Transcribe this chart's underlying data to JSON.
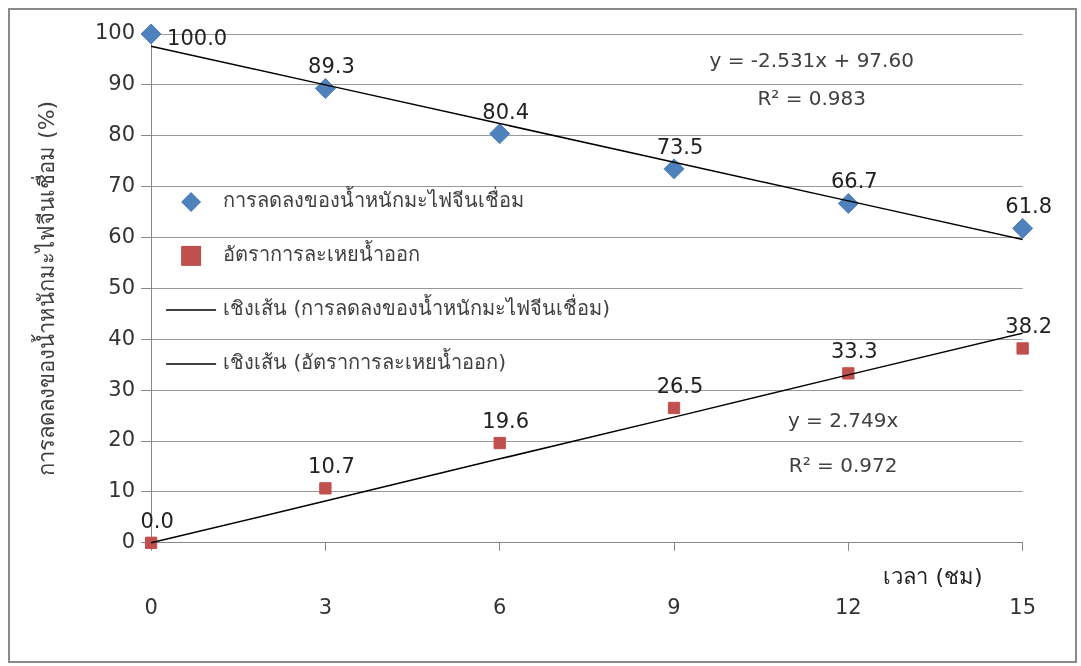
{
  "chart_data": {
    "type": "scatter",
    "xlabel": "เวลา (ชม)",
    "ylabel": "การลดลงของน้ำหนักมะไฟจีนเชื่อม (%)",
    "x": [
      0,
      3,
      6,
      9,
      12,
      15
    ],
    "series": [
      {
        "name": "การลดลงของน้ำหนักมะไฟจีนเชื่อม",
        "color": "#4f81bd",
        "marker": "diamond",
        "values": [
          100,
          89.3,
          80.4,
          73.5,
          66.7,
          61.8
        ],
        "value_labels": [
          "100.0",
          "89.3",
          "80.4",
          "73.5",
          "66.7",
          "61.8"
        ]
      },
      {
        "name": "อัตราการละเหยน้ำออก",
        "color": "#c0504d",
        "marker": "square",
        "values": [
          0,
          10.7,
          19.6,
          26.5,
          33.3,
          38.2
        ],
        "value_labels": [
          "0.0",
          "10.7",
          "19.6",
          "26.5",
          "33.3",
          "38.2"
        ]
      },
      {
        "name": "เชิงเส้น (การลดลงของน้ำหนักมะไฟจีนเชื่อม)",
        "type": "line",
        "color": "#000000",
        "marker": "none",
        "values": [
          97.6,
          90.0,
          82.4,
          74.8,
          67.2,
          59.6
        ]
      },
      {
        "name": "เชิงเส้น (อัตราการละเหยน้ำออก)",
        "type": "line",
        "color": "#000000",
        "marker": "none",
        "values": [
          0,
          8.2,
          16.5,
          24.7,
          33.0,
          41.2
        ]
      }
    ],
    "xlim": [
      0,
      15
    ],
    "xticks": [
      0,
      3,
      6,
      9,
      12,
      15
    ],
    "ylim": [
      0,
      100
    ],
    "yticks": [
      0,
      10,
      20,
      30,
      40,
      50,
      60,
      70,
      80,
      90,
      100
    ],
    "grid": "y",
    "legend": "left",
    "annotations": [
      "y = -2.531x + 97.60",
      "R² = 0.983",
      "y = 2.749x",
      "R² = 0.972"
    ]
  }
}
